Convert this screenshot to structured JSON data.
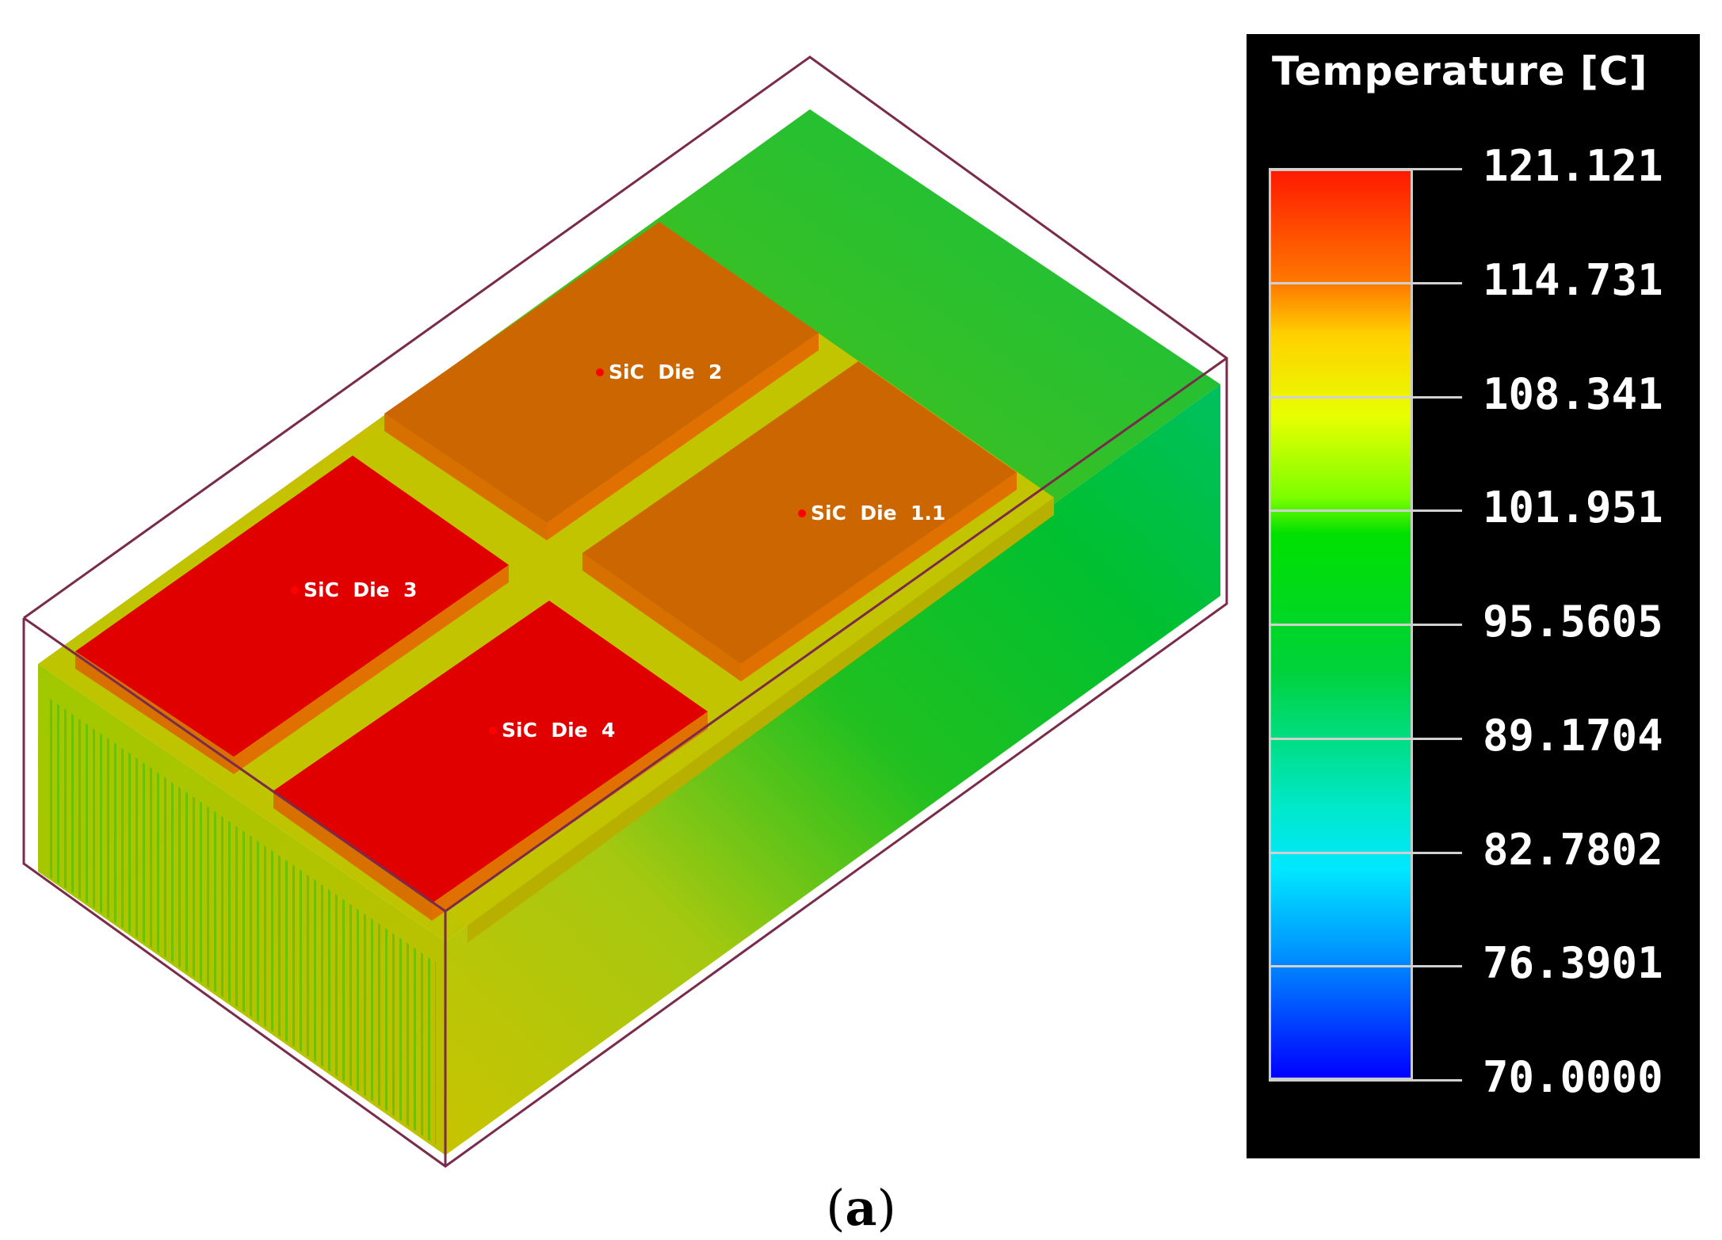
{
  "scene": {
    "dies": [
      {
        "label": "SiC  Die  2",
        "color": "#cc6600"
      },
      {
        "label": "SiC  Die  1.1",
        "color": "#cc6600"
      },
      {
        "label": "SiC  Die  3",
        "color": "#e00000"
      },
      {
        "label": "SiC  Die  4",
        "color": "#e00000"
      }
    ],
    "colors": {
      "base_green": "#10c020",
      "substrate_yellow": "#c8c800",
      "bounding_box": "#7a2a4a",
      "probe_point": "#ff0000"
    }
  },
  "legend": {
    "title": "Temperature [C]",
    "ticks": [
      "121.121",
      "114.731",
      "108.341",
      "101.951",
      "95.5605",
      "89.1704",
      "82.7802",
      "76.3901",
      "70.0000"
    ],
    "min": 70.0,
    "max": 121.121
  },
  "caption": {
    "open": "(",
    "letter": "a",
    "close": ")"
  }
}
